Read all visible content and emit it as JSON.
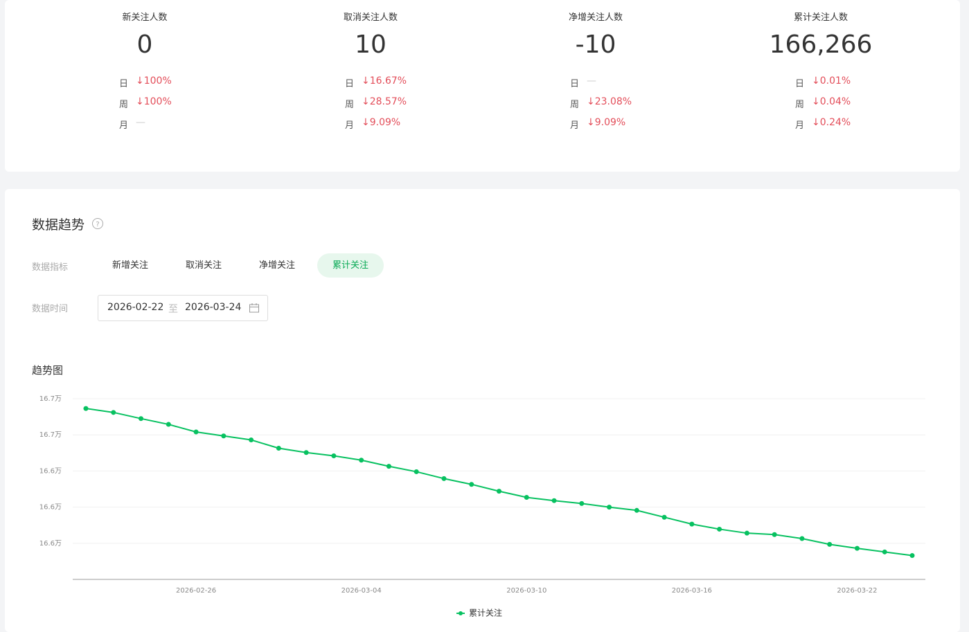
{
  "stats": [
    {
      "label": "新关注人数",
      "value": "0",
      "changes": [
        {
          "period": "日",
          "text": "↓100%"
        },
        {
          "period": "周",
          "text": "↓100%"
        },
        {
          "period": "月",
          "text": "—"
        }
      ]
    },
    {
      "label": "取消关注人数",
      "value": "10",
      "changes": [
        {
          "period": "日",
          "text": "↓16.67%"
        },
        {
          "period": "周",
          "text": "↓28.57%"
        },
        {
          "period": "月",
          "text": "↓9.09%"
        }
      ]
    },
    {
      "label": "净增关注人数",
      "value": "-10",
      "changes": [
        {
          "period": "日",
          "text": "—"
        },
        {
          "period": "周",
          "text": "↓23.08%"
        },
        {
          "period": "月",
          "text": "↓9.09%"
        }
      ]
    },
    {
      "label": "累计关注人数",
      "value": "166,266",
      "changes": [
        {
          "period": "日",
          "text": "↓0.01%"
        },
        {
          "period": "周",
          "text": "↓0.04%"
        },
        {
          "period": "月",
          "text": "↓0.24%"
        }
      ]
    }
  ],
  "trend": {
    "title": "数据趋势",
    "metric_label": "数据指标",
    "metrics": [
      "新增关注",
      "取消关注",
      "净增关注",
      "累计关注"
    ],
    "active_metric": 3,
    "time_label": "数据时间",
    "date_start": "2026-02-22",
    "date_sep": "至",
    "date_end": "2026-03-24"
  },
  "chart_data": {
    "type": "line",
    "title": "趋势图",
    "categories": [
      null,
      null,
      null,
      null,
      "2026-02-26",
      null,
      null,
      null,
      null,
      null,
      "2026-03-04",
      null,
      null,
      null,
      null,
      null,
      "2026-03-10",
      null,
      null,
      null,
      null,
      null,
      "2026-03-16",
      null,
      null,
      null,
      null,
      null,
      "2026-03-22",
      null,
      null
    ],
    "series": [
      {
        "name": "累计关注",
        "color": "#07c160",
        "values": [
          166673,
          166662,
          166645,
          166629,
          166608,
          166597,
          166586,
          166563,
          166551,
          166542,
          166530,
          166513,
          166498,
          166479,
          166463,
          166444,
          166427,
          166418,
          166410,
          166400,
          166391,
          166372,
          166353,
          166339,
          166328,
          166324,
          166313,
          166297,
          166286,
          166276,
          166266
        ]
      }
    ],
    "ylim": [
      166200,
      166700
    ],
    "yticks": [
      {
        "value": 166300,
        "label": "16.6万"
      },
      {
        "value": 166400,
        "label": "16.6万"
      },
      {
        "value": 166500,
        "label": "16.6万"
      },
      {
        "value": 166600,
        "label": "16.7万"
      },
      {
        "value": 166700,
        "label": "16.7万"
      }
    ],
    "grid": true,
    "legend": "bottom"
  }
}
